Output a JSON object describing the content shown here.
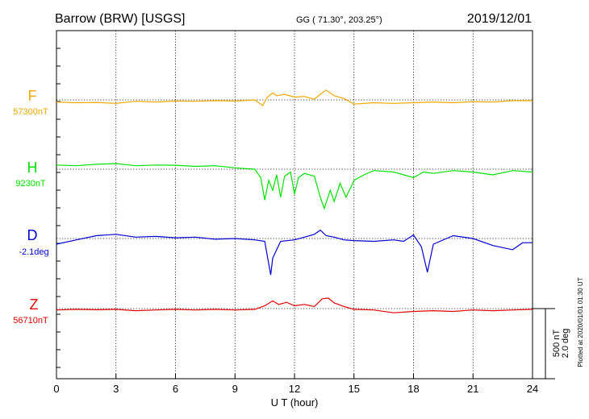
{
  "header": {
    "station": "Barrow (BRW)  [USGS]",
    "coords": "GG ( 71.30°, 203.25°)",
    "date": "2019/12/01"
  },
  "footer": {
    "plotted_note": "Plotted at 2020/01/01 01:30 UT"
  },
  "colors": {
    "F": "#f0a800",
    "H": "#00e000",
    "D": "#0000d0",
    "Z": "#e00000",
    "axis": "#000000"
  },
  "chart_data": {
    "type": "line",
    "xlabel": "U T (hour)",
    "xlim": [
      0,
      24
    ],
    "x_ticks": [
      0,
      3,
      6,
      9,
      12,
      15,
      18,
      21,
      24
    ],
    "scale_bar": {
      "nT": "500 nT",
      "deg": "2.0 deg"
    },
    "series": [
      {
        "name": "F",
        "baseline": "57300nT",
        "x": [
          0,
          1,
          2,
          3,
          4,
          5,
          6,
          7,
          8,
          9,
          10,
          10.4,
          10.6,
          10.9,
          11.1,
          11.5,
          12,
          12.5,
          13,
          13.3,
          13.6,
          14,
          14.5,
          15,
          16,
          17,
          18,
          19,
          20,
          21,
          22,
          23,
          24
        ],
        "y": [
          -15,
          -20,
          -18,
          -25,
          -10,
          -15,
          -8,
          -10,
          -5,
          -8,
          0,
          -40,
          15,
          50,
          30,
          40,
          20,
          25,
          5,
          40,
          70,
          30,
          10,
          -30,
          -20,
          -25,
          -20,
          -15,
          -20,
          -12,
          -15,
          -5,
          -5
        ]
      },
      {
        "name": "H",
        "baseline": "9230nT",
        "x": [
          0,
          1,
          2,
          3,
          4,
          5,
          6,
          7,
          8,
          9,
          10,
          10.3,
          10.5,
          10.7,
          10.9,
          11.1,
          11.3,
          11.5,
          11.8,
          12,
          12.2,
          12.5,
          13,
          13.3,
          13.5,
          13.8,
          14,
          14.3,
          14.6,
          15,
          15.5,
          16,
          17,
          18,
          18.5,
          19,
          20,
          21,
          22,
          23,
          24
        ],
        "y": [
          30,
          25,
          35,
          40,
          25,
          30,
          28,
          20,
          25,
          10,
          0,
          -60,
          -220,
          -80,
          -150,
          -40,
          -200,
          -50,
          -20,
          -180,
          -60,
          -30,
          -50,
          -200,
          -280,
          -150,
          -230,
          -100,
          -200,
          -80,
          -40,
          -10,
          -20,
          -60,
          -20,
          -30,
          -10,
          -20,
          -40,
          -10,
          -20
        ]
      },
      {
        "name": "D",
        "baseline": "-2.1deg",
        "x": [
          0,
          1,
          2,
          3,
          4,
          5,
          6,
          7,
          8,
          9,
          10,
          10.5,
          10.8,
          10.9,
          11.1,
          11.3,
          12,
          12.5,
          13,
          13.3,
          13.6,
          14,
          14.5,
          15,
          16,
          17,
          17.5,
          18,
          18.4,
          18.7,
          19,
          20,
          21,
          22,
          23,
          23.5,
          24
        ],
        "y": [
          -40,
          -10,
          20,
          30,
          10,
          15,
          5,
          10,
          -5,
          0,
          -10,
          -20,
          -260,
          -140,
          -80,
          -20,
          -10,
          10,
          30,
          60,
          20,
          10,
          -10,
          -15,
          -20,
          -10,
          -20,
          25,
          -60,
          -240,
          -40,
          20,
          0,
          -50,
          -80,
          -30,
          -30
        ]
      },
      {
        "name": "Z",
        "baseline": "56710nT",
        "x": [
          0,
          1,
          2,
          3,
          4,
          5,
          6,
          7,
          8,
          9,
          10,
          10.5,
          10.9,
          11.2,
          11.6,
          12,
          12.5,
          13,
          13.4,
          13.7,
          14,
          14.5,
          15,
          16,
          17,
          18,
          19,
          20,
          21,
          22,
          23,
          24
        ],
        "y": [
          -10,
          -5,
          -8,
          -5,
          -15,
          -10,
          -5,
          -10,
          -5,
          -10,
          -5,
          20,
          55,
          30,
          45,
          20,
          30,
          15,
          70,
          75,
          40,
          15,
          -5,
          -10,
          -30,
          -20,
          -15,
          -20,
          -10,
          -15,
          -10,
          -5
        ]
      }
    ]
  }
}
